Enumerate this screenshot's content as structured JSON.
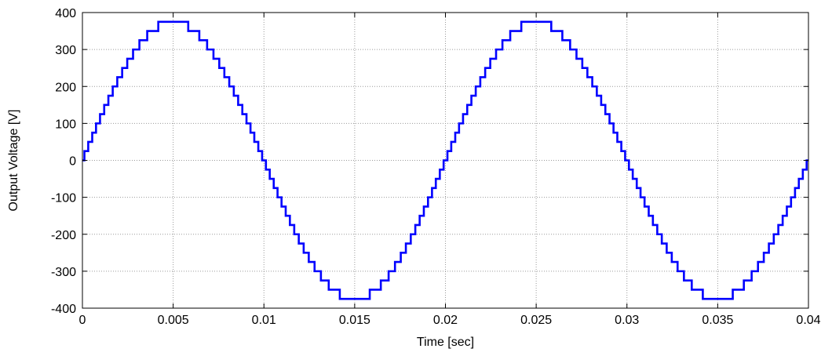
{
  "chart_data": {
    "type": "line",
    "title": "",
    "xlabel": "Time [sec]",
    "ylabel": "Output Voltage [V]",
    "xlim": [
      0,
      0.04
    ],
    "ylim": [
      -400,
      400
    ],
    "x_ticks": [
      0,
      0.005,
      0.01,
      0.015,
      0.02,
      0.025,
      0.03,
      0.035,
      0.04
    ],
    "x_tick_labels": [
      "0",
      "0.005",
      "0.01",
      "0.015",
      "0.02",
      "0.025",
      "0.03",
      "0.035",
      "0.04"
    ],
    "y_ticks": [
      -400,
      -300,
      -200,
      -100,
      0,
      100,
      200,
      300,
      400
    ],
    "y_tick_labels": [
      "-400",
      "-300",
      "-200",
      "-100",
      "0",
      "100",
      "200",
      "300",
      "400"
    ],
    "grid": true,
    "legend": "none",
    "series": [
      {
        "color": "#0000ff",
        "frequency_hz": 50,
        "amplitude_v": 375,
        "step_v": 25,
        "x_end": 0.04
      }
    ]
  }
}
